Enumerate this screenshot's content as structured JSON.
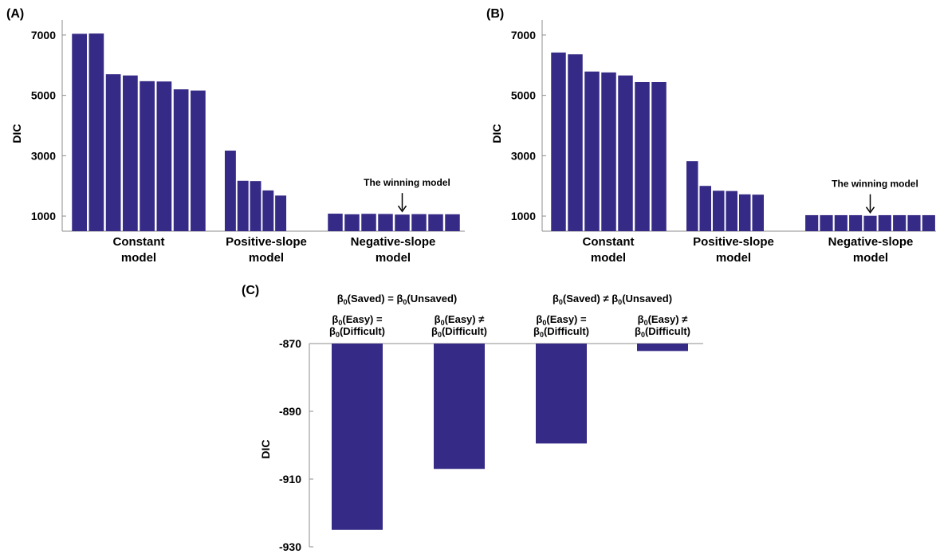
{
  "chart_data": [
    {
      "panel": "(A)",
      "type": "bar",
      "ylabel": "DIC",
      "yticks": [
        1000,
        3000,
        5000,
        7000
      ],
      "ylim": [
        500,
        7500
      ],
      "bar_color": "#352a86",
      "groups": [
        {
          "label_lines": [
            "Constant",
            "model"
          ],
          "values": [
            7040,
            7050,
            5700,
            5660,
            5470,
            5460,
            5200,
            5160
          ]
        },
        {
          "label_lines": [
            "Positive-slope",
            "model"
          ],
          "values": [
            3170,
            2170,
            2160,
            1850,
            1680
          ]
        },
        {
          "label_lines": [
            "Negative-slope",
            "model"
          ],
          "values": [
            1080,
            1060,
            1075,
            1070,
            1050,
            1065,
            1060,
            1060
          ]
        }
      ],
      "annotation": {
        "text": "The winning model",
        "group": 2,
        "bar": 4
      }
    },
    {
      "panel": "(B)",
      "type": "bar",
      "ylabel": "DIC",
      "yticks": [
        1000,
        3000,
        5000,
        7000
      ],
      "ylim": [
        500,
        7500
      ],
      "bar_color": "#352a86",
      "groups": [
        {
          "label_lines": [
            "Constant",
            "model"
          ],
          "values": [
            6420,
            6360,
            5790,
            5760,
            5660,
            5440,
            5440
          ]
        },
        {
          "label_lines": [
            "Positive-slope",
            "model"
          ],
          "values": [
            2820,
            2000,
            1840,
            1830,
            1720,
            1710
          ]
        },
        {
          "label_lines": [
            "Negative-slope",
            "model"
          ],
          "values": [
            1030,
            1030,
            1030,
            1030,
            1010,
            1030,
            1030,
            1030,
            1030
          ]
        }
      ],
      "annotation": {
        "text": "The winning model",
        "group": 2,
        "bar": 4
      }
    },
    {
      "panel": "(C)",
      "type": "bar",
      "ylabel": "DIC",
      "yticks": [
        -870,
        -890,
        -910,
        -930
      ],
      "ylim": [
        -930,
        -870
      ],
      "baseline": -870,
      "bar_color": "#352a86",
      "headers": [
        {
          "beta": "β",
          "sub": "0",
          "text": "(Saved) = ",
          "beta2": "β",
          "sub2": "0",
          "text2": "(Unsaved)"
        },
        {
          "beta": "β",
          "sub": "0",
          "text": "(Saved) ≠ ",
          "beta2": "β",
          "sub2": "0",
          "text2": "(Unsaved)"
        }
      ],
      "categories": [
        {
          "line1": {
            "beta": "β",
            "sub": "0",
            "text": "(Easy) ="
          },
          "line2": {
            "beta": "β",
            "sub": "0",
            "text": "(Difficult)"
          }
        },
        {
          "line1": {
            "beta": "β",
            "sub": "0",
            "text": "(Easy) ≠"
          },
          "line2": {
            "beta": "β",
            "sub": "0",
            "text": "(Difficult)"
          }
        },
        {
          "line1": {
            "beta": "β",
            "sub": "0",
            "text": "(Easy) ="
          },
          "line2": {
            "beta": "β",
            "sub": "0",
            "text": "(Difficult)"
          }
        },
        {
          "line1": {
            "beta": "β",
            "sub": "0",
            "text": "(Easy) ≠"
          },
          "line2": {
            "beta": "β",
            "sub": "0",
            "text": "(Difficult)"
          }
        }
      ],
      "values": [
        -925,
        -907,
        -899.5,
        -872.2
      ]
    }
  ]
}
